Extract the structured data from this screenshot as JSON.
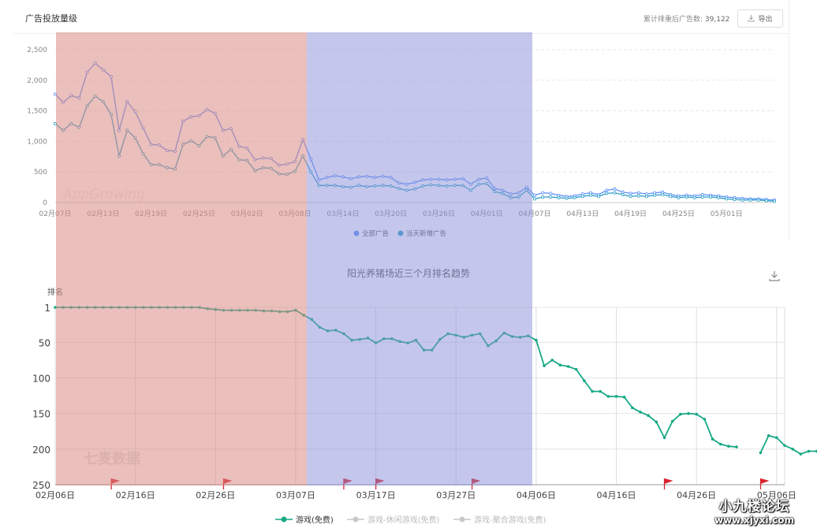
{
  "header": {
    "title": "广告投放量级",
    "total_label": "累计排重后广告数:",
    "total_value": "39,122",
    "export_label": "导出"
  },
  "colors": {
    "series_all": "#5b8ff9",
    "series_new": "#2fa0c8",
    "rank_line": "#16a985",
    "band_red": "#d98b85",
    "band_blue": "#8a8fd8",
    "flag": "#d9232d"
  },
  "chart_data": [
    {
      "type": "line",
      "title": "",
      "x_ticks": [
        "02月07日",
        "02月13日",
        "02月19日",
        "02月25日",
        "03月02日",
        "03月08日",
        "03月14日",
        "03月20日",
        "03月26日",
        "04月01日",
        "04月07日",
        "04月13日",
        "04月19日",
        "04月25日",
        "05月01日"
      ],
      "y_ticks": [
        "0",
        "500",
        "1,000",
        "1,500",
        "2,000",
        "2,500"
      ],
      "ylim": [
        0,
        2500
      ],
      "x_range": [
        "02月07日",
        "05月07日"
      ],
      "grid": "horizontal dashed",
      "legend": "bottom-center",
      "watermark": "AppGrowing",
      "series": [
        {
          "name": "全部广告",
          "values": [
            1770,
            1640,
            1750,
            1710,
            2130,
            2280,
            2170,
            2060,
            1180,
            1650,
            1490,
            1220,
            950,
            940,
            850,
            840,
            1330,
            1400,
            1420,
            1520,
            1460,
            1180,
            1210,
            920,
            890,
            700,
            730,
            720,
            610,
            630,
            670,
            1030,
            710,
            370,
            410,
            440,
            420,
            390,
            420,
            430,
            410,
            430,
            410,
            320,
            300,
            330,
            370,
            380,
            380,
            370,
            380,
            390,
            300,
            380,
            400,
            230,
            200,
            140,
            160,
            250,
            120,
            160,
            150,
            120,
            100,
            110,
            140,
            160,
            130,
            200,
            220,
            170,
            150,
            160,
            140,
            160,
            170,
            130,
            110,
            120,
            110,
            130,
            120,
            110,
            90,
            80,
            70,
            60,
            60,
            50,
            40
          ]
        },
        {
          "name": "当天新增广告",
          "values": [
            1290,
            1180,
            1290,
            1230,
            1580,
            1740,
            1650,
            1440,
            760,
            1180,
            1060,
            800,
            620,
            620,
            570,
            550,
            950,
            1010,
            930,
            1080,
            1060,
            760,
            870,
            700,
            690,
            520,
            570,
            560,
            470,
            460,
            510,
            760,
            500,
            280,
            280,
            280,
            260,
            250,
            280,
            260,
            270,
            280,
            270,
            230,
            200,
            220,
            270,
            290,
            280,
            270,
            280,
            280,
            200,
            300,
            310,
            180,
            150,
            80,
            90,
            200,
            60,
            90,
            90,
            80,
            70,
            80,
            100,
            120,
            100,
            150,
            160,
            130,
            100,
            110,
            100,
            120,
            130,
            100,
            80,
            90,
            80,
            90,
            90,
            80,
            60,
            50,
            40,
            40,
            40,
            30,
            20
          ]
        }
      ]
    },
    {
      "type": "line",
      "title": "阳光养猪场近三个月排名趋势",
      "ylabel": "排名",
      "y_ticks": [
        "1",
        "50",
        "100",
        "150",
        "200",
        "250"
      ],
      "ylim": [
        1,
        250
      ],
      "y_inverted": true,
      "x_ticks": [
        "02月06日",
        "02月16日",
        "02月26日",
        "03月07日",
        "03月17日",
        "03月27日",
        "04月06日",
        "04月16日",
        "04月26日",
        "05月06日"
      ],
      "x_range": [
        "02月06日",
        "05月07日"
      ],
      "grid": "vertical and horizontal",
      "legend": "bottom-center",
      "watermark": "七麦数据",
      "series": [
        {
          "name": "游戏(免费)",
          "values": [
            1,
            1,
            1,
            1,
            1,
            1,
            1,
            1,
            1,
            1,
            0,
            0,
            0,
            0,
            0,
            0,
            0,
            0,
            1,
            3,
            4,
            5,
            5,
            5,
            5,
            5,
            6,
            6,
            7,
            7,
            5,
            12,
            18,
            29,
            34,
            33,
            38,
            47,
            46,
            44,
            51,
            45,
            45,
            49,
            51,
            47,
            61,
            61,
            46,
            38,
            40,
            43,
            40,
            38,
            55,
            48,
            37,
            42,
            43,
            41,
            47,
            83,
            75,
            82,
            84,
            88,
            104,
            119,
            119,
            126,
            126,
            127,
            142,
            148,
            153,
            162,
            184,
            161,
            151,
            150,
            151,
            158,
            186,
            193,
            196,
            197,
            null,
            null,
            205,
            181,
            184,
            195,
            200,
            207,
            203,
            203
          ]
        },
        {
          "name": "游戏-休闲游戏(免费)",
          "values": []
        },
        {
          "name": "游戏-聚合游戏(免费)",
          "values": []
        }
      ],
      "flags_at_day": [
        7,
        21,
        36,
        40,
        52,
        76,
        88
      ]
    }
  ],
  "watermarks": {
    "site_line1": "小九楼论坛",
    "site_line2": "www.xjyxi.com"
  }
}
